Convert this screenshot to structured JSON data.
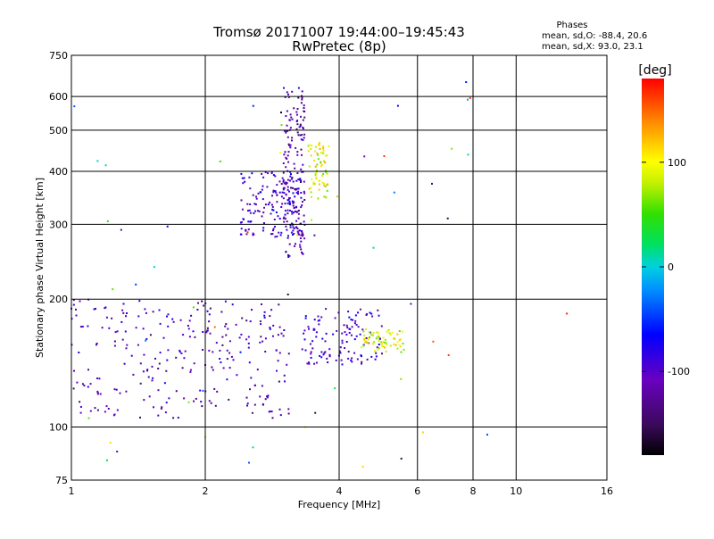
{
  "chart_data": {
    "type": "scatter",
    "title": "Tromsø 20171007 19:44:00–19:45:43",
    "subtitle": "RwPretec (8p)",
    "xlabel": "Frequency [MHz]",
    "ylabel": "Stationary phase Virtual Height [km]",
    "x_scale": "log",
    "y_scale": "log",
    "xlim": [
      1,
      16
    ],
    "ylim": [
      75,
      750
    ],
    "x_ticks": [
      1,
      2,
      4,
      6,
      8,
      10,
      16
    ],
    "y_ticks": [
      75,
      100,
      200,
      300,
      400,
      500,
      600,
      750
    ],
    "x_grid": [
      1,
      2,
      4,
      6,
      8,
      10,
      16
    ],
    "y_grid": [
      100,
      200,
      300,
      400,
      500,
      600,
      750
    ],
    "grid": true,
    "legend": {
      "title": "Phases",
      "lines": [
        "mean, sd,O: -88.4, 20.6",
        "mean, sd,X:  93.0, 23.1"
      ],
      "placement": "top-right"
    },
    "colorbar": {
      "label": "[deg]",
      "min": -180,
      "max": 180,
      "ticks": [
        -100,
        0,
        100
      ],
      "colormap": "rainbow (black → purple → blue → cyan → green → yellow → orange → red)"
    },
    "clusters": [
      {
        "name": "lower F cluster",
        "x_range": [
          1.0,
          3.1
        ],
        "y_range": [
          105,
          200
        ],
        "phase": -110,
        "count": 260
      },
      {
        "name": "upper F cluster",
        "x_range": [
          2.4,
          3.3
        ],
        "y_range": [
          280,
          400
        ],
        "phase": -95,
        "count": 160
      },
      {
        "name": "vertical trace",
        "x_range": [
          3.0,
          3.35
        ],
        "y_range": [
          250,
          640
        ],
        "phase": -115,
        "count": 170
      },
      {
        "name": "X-mode top",
        "x_range": [
          3.4,
          3.8
        ],
        "y_range": [
          340,
          470
        ],
        "phase": 95,
        "count": 70
      },
      {
        "name": "mid band",
        "x_range": [
          3.3,
          5.0
        ],
        "y_range": [
          140,
          190
        ],
        "phase": -100,
        "count": 120
      },
      {
        "name": "X-mode lower",
        "x_range": [
          4.5,
          5.6
        ],
        "y_range": [
          150,
          170
        ],
        "phase": 90,
        "count": 70
      },
      {
        "name": "outliers",
        "x_range": [
          1.0,
          9.0
        ],
        "y_range": [
          80,
          650
        ],
        "phase": 0,
        "count": 60
      }
    ],
    "sample_points": [
      {
        "x": 1.05,
        "y": 108,
        "phase": -110
      },
      {
        "x": 1.2,
        "y": 112,
        "phase": -105
      },
      {
        "x": 1.5,
        "y": 118,
        "phase": -115
      },
      {
        "x": 2.0,
        "y": 140,
        "phase": -110
      },
      {
        "x": 2.4,
        "y": 150,
        "phase": -60
      },
      {
        "x": 2.8,
        "y": 170,
        "phase": -70
      },
      {
        "x": 2.7,
        "y": 290,
        "phase": -75
      },
      {
        "x": 3.1,
        "y": 500,
        "phase": -115
      },
      {
        "x": 3.6,
        "y": 380,
        "phase": 95
      },
      {
        "x": 5.0,
        "y": 155,
        "phase": 90
      },
      {
        "x": 5.8,
        "y": 195,
        "phase": -110
      },
      {
        "x": 13.0,
        "y": 185,
        "phase": 170
      }
    ]
  }
}
